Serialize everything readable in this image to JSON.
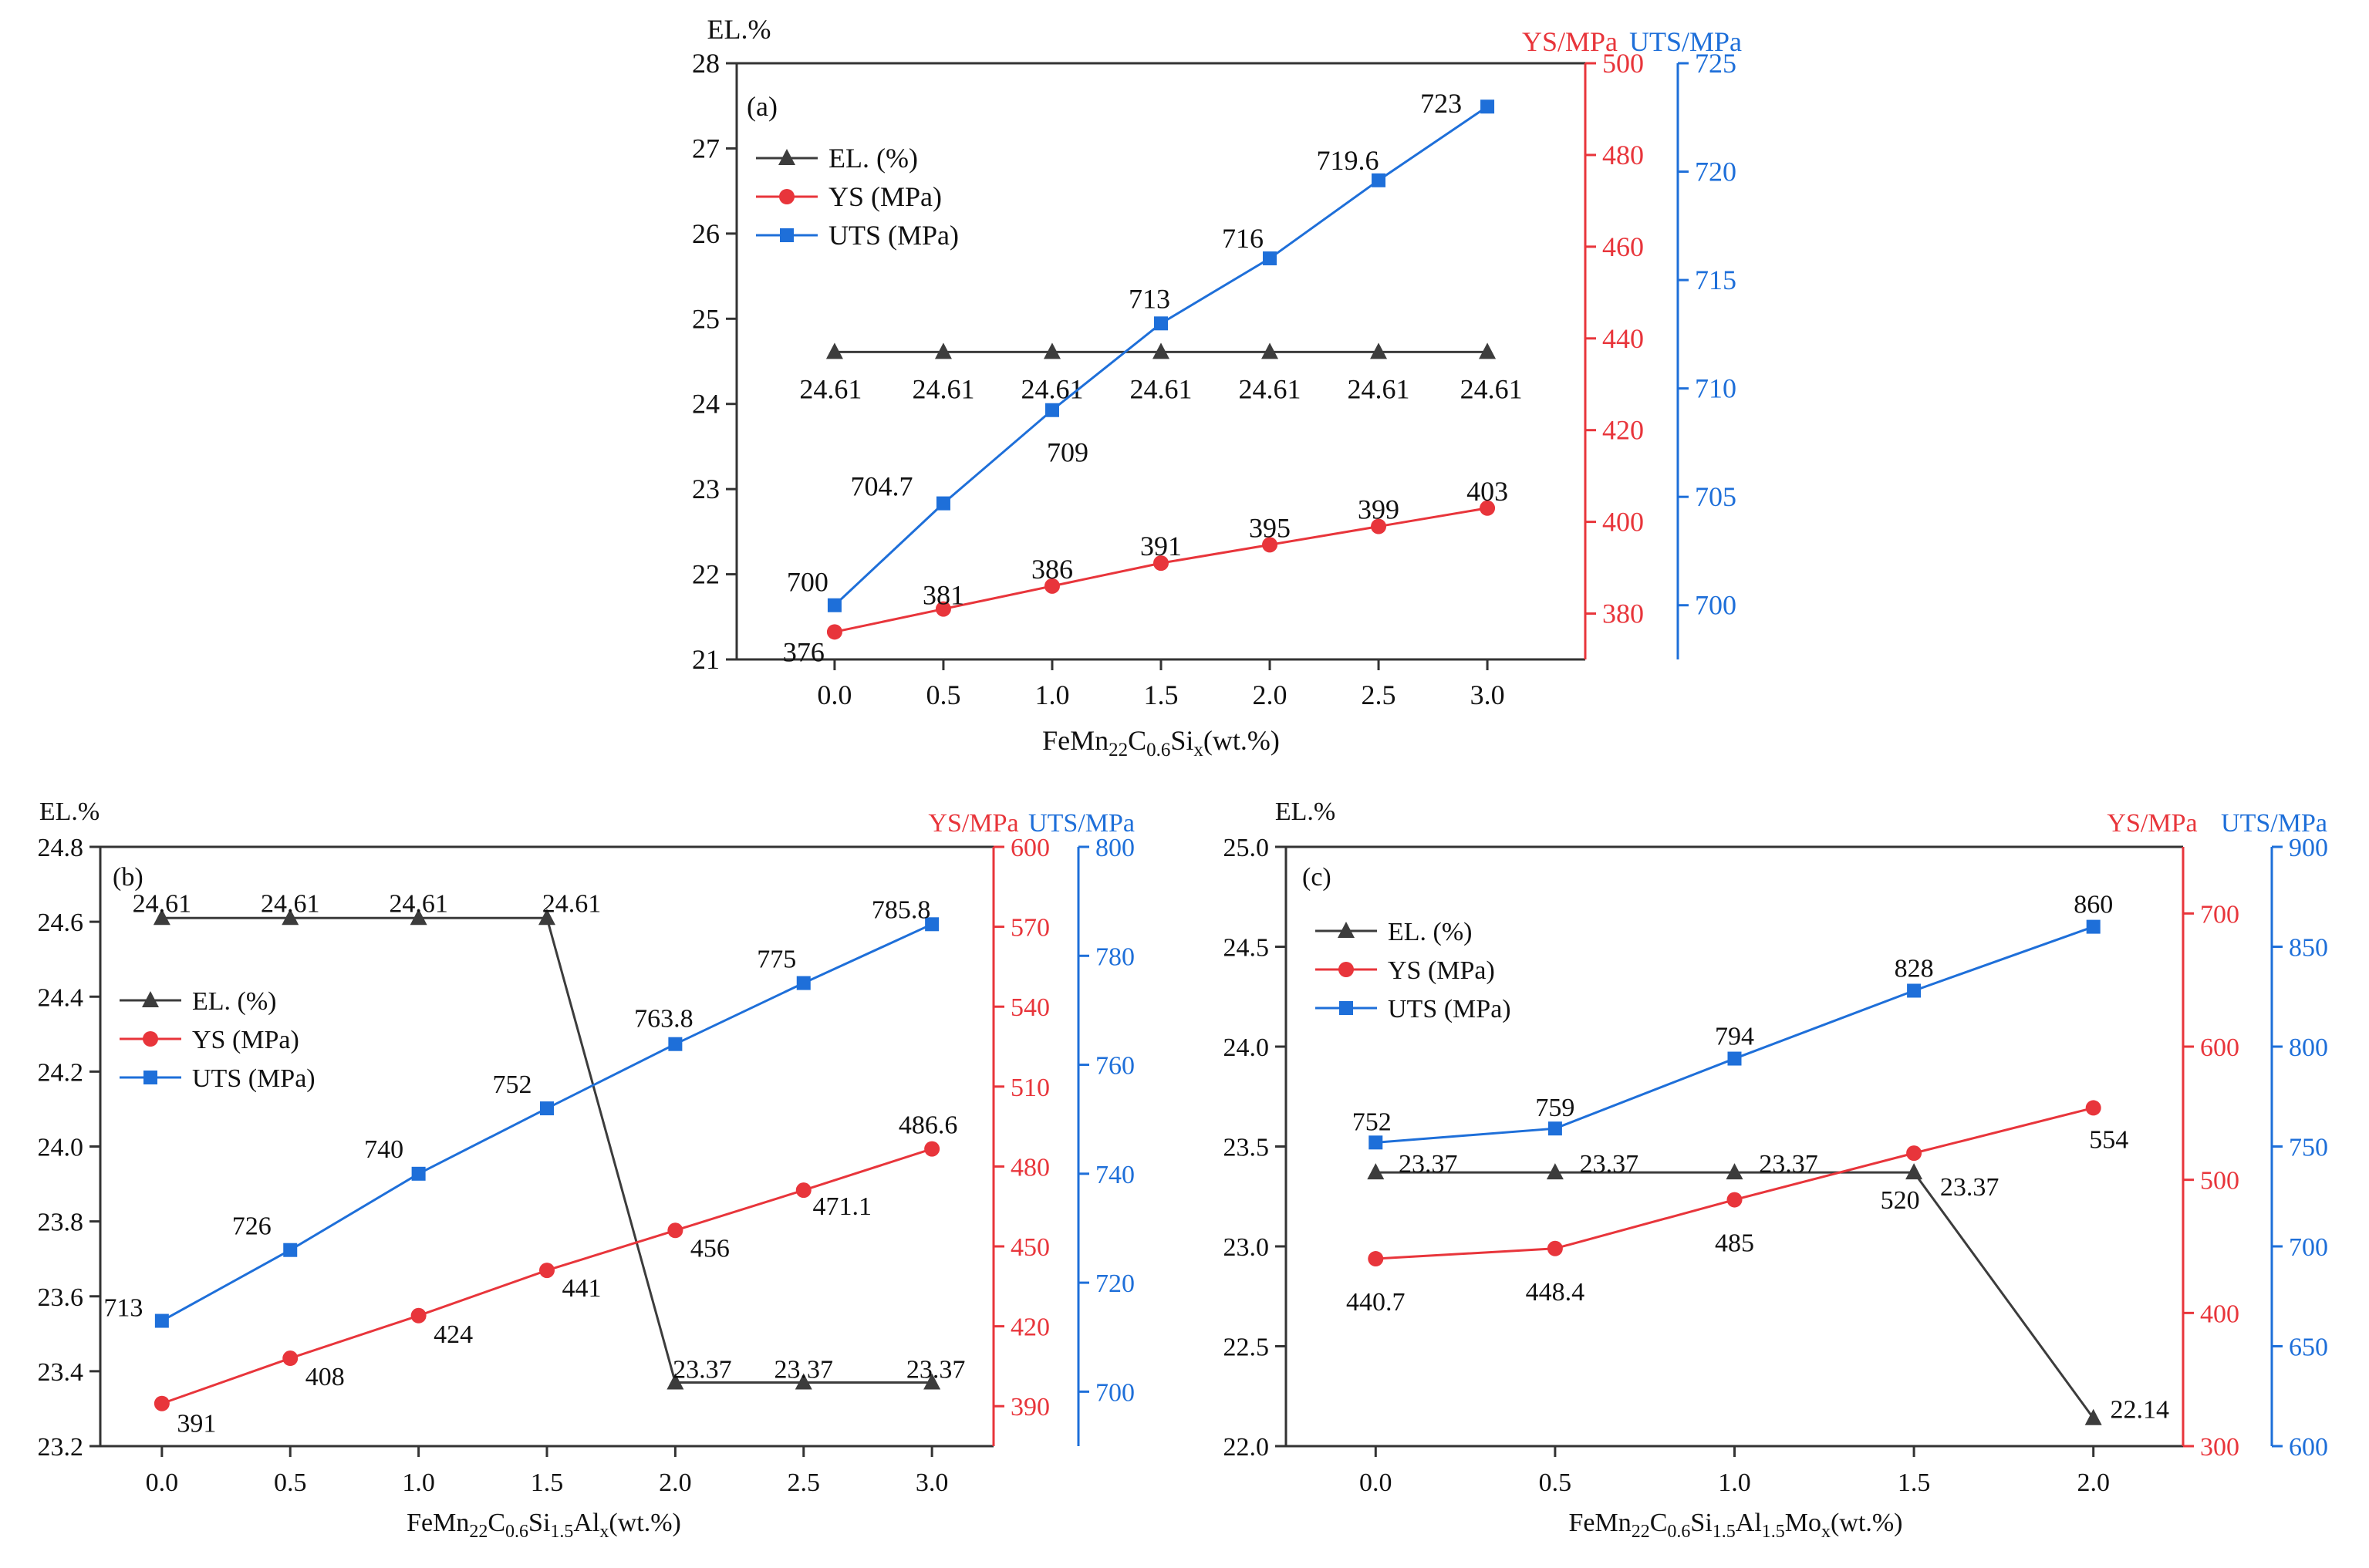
{
  "colors": {
    "el": "#3c3c3c",
    "ys": "#e8353b",
    "uts": "#1e6fd9",
    "axis": "#333333"
  },
  "chart_data": [
    {
      "type": "line",
      "panel_label": "(a)",
      "xlabel": "FeMn22C0.6Six(wt.%)",
      "xlabel_parts": {
        "base": "FeMn",
        "s1": "22",
        "m1": "C",
        "s2": "0.6",
        "m2": "Si",
        "s3": "x",
        "tail": "(wt.%)"
      },
      "y_left_label": "EL.%",
      "y_right1_label": "YS/MPa",
      "y_right2_label": "UTS/MPa",
      "x": [
        0.0,
        0.5,
        1.0,
        1.5,
        2.0,
        2.5,
        3.0
      ],
      "x_ticks": [
        "0.0",
        "0.5",
        "1.0",
        "1.5",
        "2.0",
        "2.5",
        "3.0"
      ],
      "xlim": [
        -0.45,
        3.45
      ],
      "y_left": {
        "lim": [
          21,
          28
        ],
        "ticks": [
          21,
          22,
          23,
          24,
          25,
          26,
          27,
          28
        ],
        "tick_labels": [
          "21",
          "22",
          "23",
          "24",
          "25",
          "26",
          "27",
          "28"
        ]
      },
      "y_right1": {
        "lim": [
          370,
          500
        ],
        "ticks": [
          380,
          400,
          420,
          440,
          460,
          480,
          500
        ],
        "tick_labels": [
          "380",
          "400",
          "420",
          "440",
          "460",
          "480",
          "500"
        ]
      },
      "y_right2": {
        "lim": [
          697.5,
          725
        ],
        "ticks": [
          700,
          705,
          710,
          715,
          720,
          725
        ],
        "tick_labels": [
          "700",
          "705",
          "710",
          "715",
          "720",
          "725"
        ]
      },
      "legend": {
        "position": "upper-left",
        "entries": [
          "EL. (%)",
          "YS (MPa)",
          "UTS (MPa)"
        ]
      },
      "series": [
        {
          "name": "EL. (%)",
          "axis": "left",
          "marker": "triangle",
          "color_key": "el",
          "values": [
            24.61,
            24.61,
            24.61,
            24.61,
            24.61,
            24.61,
            24.61
          ],
          "labels": [
            "24.61",
            "24.61",
            "24.61",
            "24.61",
            "24.61",
            "24.61",
            "24.61"
          ]
        },
        {
          "name": "YS (MPa)",
          "axis": "right1",
          "marker": "circle",
          "color_key": "ys",
          "values": [
            376,
            381,
            386,
            391,
            395,
            399,
            403
          ],
          "labels": [
            "376",
            "381",
            "386",
            "391",
            "395",
            "399",
            "403"
          ]
        },
        {
          "name": "UTS (MPa)",
          "axis": "right2",
          "marker": "square",
          "color_key": "uts",
          "values": [
            700,
            704.7,
            709,
            713,
            716,
            719.6,
            723
          ],
          "labels": [
            "700",
            "704.7",
            "709",
            "713",
            "716",
            "719.6",
            "723"
          ]
        }
      ]
    },
    {
      "type": "line",
      "panel_label": "(b)",
      "xlabel": "FeMn22C0.6Si1.5Alx(wt.%)",
      "xlabel_parts": {
        "base": "FeMn",
        "s1": "22",
        "m1": "C",
        "s2": "0.6",
        "m2": "Si",
        "s3": "1.5",
        "m3": "Al",
        "s4": "x",
        "tail": "(wt.%)"
      },
      "y_left_label": "EL.%",
      "y_right1_label": "YS/MPa",
      "y_right2_label": "UTS/MPa",
      "x": [
        0.0,
        0.5,
        1.0,
        1.5,
        2.0,
        2.5,
        3.0
      ],
      "x_ticks": [
        "0.0",
        "0.5",
        "1.0",
        "1.5",
        "2.0",
        "2.5",
        "3.0"
      ],
      "xlim": [
        -0.24,
        3.24
      ],
      "y_left": {
        "lim": [
          23.2,
          24.8
        ],
        "ticks": [
          23.2,
          23.4,
          23.6,
          23.8,
          24.0,
          24.2,
          24.4,
          24.6,
          24.8
        ],
        "tick_labels": [
          "23.2",
          "23.4",
          "23.6",
          "23.8",
          "24.0",
          "24.2",
          "24.4",
          "24.6",
          "24.8"
        ]
      },
      "y_right1": {
        "lim": [
          375,
          600
        ],
        "ticks": [
          390,
          420,
          450,
          480,
          510,
          540,
          570,
          600
        ],
        "tick_labels": [
          "390",
          "420",
          "450",
          "480",
          "510",
          "540",
          "570",
          "600"
        ]
      },
      "y_right2": {
        "lim": [
          690,
          800
        ],
        "ticks": [
          700,
          720,
          740,
          760,
          780,
          800
        ],
        "tick_labels": [
          "700",
          "720",
          "740",
          "760",
          "780",
          "800"
        ]
      },
      "legend": {
        "position": "middle-left",
        "entries": [
          "EL. (%)",
          "YS (MPa)",
          "UTS (MPa)"
        ]
      },
      "series": [
        {
          "name": "EL. (%)",
          "axis": "left",
          "marker": "triangle",
          "color_key": "el",
          "values": [
            24.61,
            24.61,
            24.61,
            24.61,
            23.37,
            23.37,
            23.37
          ],
          "labels": [
            "24.61",
            "24.61",
            "24.61",
            "24.61",
            "23.37",
            "23.37",
            "23.37"
          ]
        },
        {
          "name": "YS (MPa)",
          "axis": "right1",
          "marker": "circle",
          "color_key": "ys",
          "values": [
            391,
            408,
            424,
            441,
            456,
            471.1,
            486.6
          ],
          "labels": [
            "391",
            "408",
            "424",
            "441",
            "456",
            "471.1",
            "486.6"
          ]
        },
        {
          "name": "UTS (MPa)",
          "axis": "right2",
          "marker": "square",
          "color_key": "uts",
          "values": [
            713,
            726,
            740,
            752,
            763.8,
            775,
            785.8
          ],
          "labels": [
            "713",
            "726",
            "740",
            "752",
            "763.8",
            "775",
            "785.8"
          ]
        }
      ]
    },
    {
      "type": "line",
      "panel_label": "(c)",
      "xlabel": "FeMn22C0.6Si1.5Al1.5Mox(wt.%)",
      "xlabel_parts": {
        "base": "FeMn",
        "s1": "22",
        "m1": "C",
        "s2": "0.6",
        "m2": "Si",
        "s3": "1.5",
        "m3": "Al",
        "s4": "1.5",
        "m4": "Mo",
        "s5": "x",
        "tail": "(wt.%)"
      },
      "y_left_label": "EL.%",
      "y_right1_label": "YS/MPa",
      "y_right2_label": "UTS/MPa",
      "x": [
        0.0,
        0.5,
        1.0,
        1.5,
        2.0
      ],
      "x_ticks": [
        "0.0",
        "0.5",
        "1.0",
        "1.5",
        "2.0"
      ],
      "xlim": [
        -0.25,
        2.25
      ],
      "y_left": {
        "lim": [
          22.0,
          25.0
        ],
        "ticks": [
          22.0,
          22.5,
          23.0,
          23.5,
          24.0,
          24.5,
          25.0
        ],
        "tick_labels": [
          "22.0",
          "22.5",
          "23.0",
          "23.5",
          "24.0",
          "24.5",
          "25.0"
        ]
      },
      "y_right1": {
        "lim": [
          300,
          750
        ],
        "ticks": [
          300,
          400,
          500,
          600,
          700
        ],
        "tick_labels": [
          "300",
          "400",
          "500",
          "600",
          "700"
        ]
      },
      "y_right2": {
        "lim": [
          600,
          900
        ],
        "ticks": [
          600,
          650,
          700,
          750,
          800,
          850,
          900
        ],
        "tick_labels": [
          "600",
          "650",
          "700",
          "750",
          "800",
          "850",
          "900"
        ]
      },
      "legend": {
        "position": "upper-left",
        "entries": [
          "EL. (%)",
          "YS (MPa)",
          "UTS (MPa)"
        ]
      },
      "series": [
        {
          "name": "EL. (%)",
          "axis": "left",
          "marker": "triangle",
          "color_key": "el",
          "values": [
            23.37,
            23.37,
            23.37,
            23.37,
            22.14
          ],
          "labels": [
            "23.37",
            "23.37",
            "23.37",
            "23.37",
            "22.14"
          ]
        },
        {
          "name": "YS (MPa)",
          "axis": "right1",
          "marker": "circle",
          "color_key": "ys",
          "values": [
            440.7,
            448.4,
            485,
            520,
            554
          ],
          "labels": [
            "440.7",
            "448.4",
            "485",
            "520",
            "554"
          ]
        },
        {
          "name": "UTS (MPa)",
          "axis": "right2",
          "marker": "square",
          "color_key": "uts",
          "values": [
            752,
            759,
            794,
            828,
            860
          ],
          "labels": [
            "752",
            "759",
            "794",
            "828",
            "860"
          ]
        }
      ]
    }
  ]
}
